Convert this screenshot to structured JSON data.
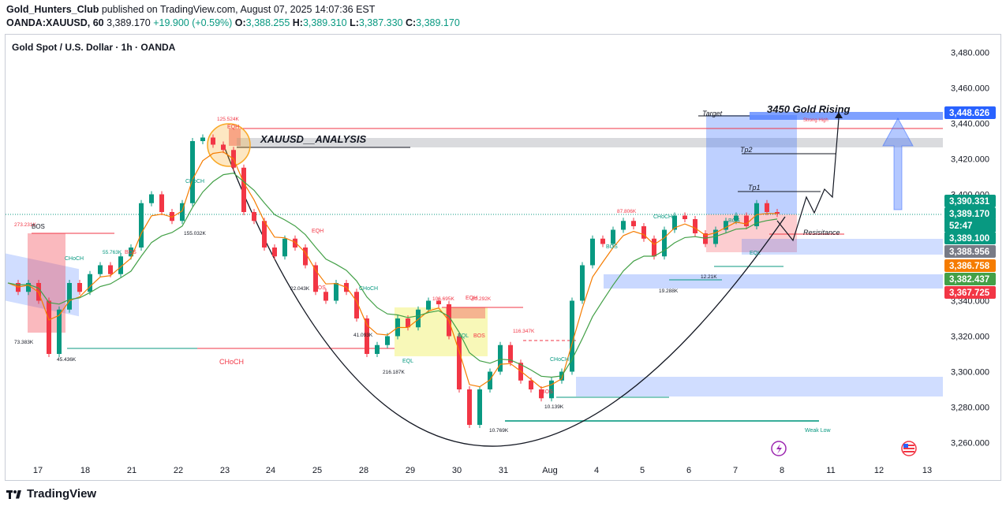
{
  "header": {
    "user": "Gold_Hunters_Club",
    "published_text": "published on TradingView.com, August 07, 2025 14:07:36 EST",
    "symbol": "OANDA:XAUUSD, 60",
    "last": "3,389.170",
    "change": "+19.900 (+0.59%)",
    "o_label": "O:",
    "o": "3,388.255",
    "h_label": "H:",
    "h": "3,389.310",
    "l_label": "L:",
    "l": "3,387.330",
    "c_label": "C:",
    "c": "3,389.170"
  },
  "chart_title": "Gold Spot / U.S. Dollar · 1h · OANDA",
  "footer": {
    "brand": "TradingView"
  },
  "colors": {
    "up": "#089981",
    "down": "#f23645",
    "ema_fast": "#f57c00",
    "ema_slow": "#43a047",
    "zone_blue": "#2962ff",
    "zone_red": "#f23645",
    "zone_yellow": "#e6e600"
  },
  "chart_data": {
    "type": "line",
    "y_axis": {
      "min": 3250,
      "max": 3490,
      "ticks": [
        "3,260.000",
        "3,280.000",
        "3,300.000",
        "3,320.000",
        "3,340.000",
        "3,360.000",
        "3,380.000",
        "3,400.000",
        "3,420.000",
        "3,440.000",
        "3,460.000",
        "3,480.000"
      ]
    },
    "x_ticks": [
      "17",
      "18",
      "21",
      "22",
      "23",
      "24",
      "25",
      "28",
      "29",
      "30",
      "31",
      "Aug",
      "4",
      "5",
      "6",
      "7",
      "8",
      "11",
      "12",
      "13"
    ],
    "price_path": [
      [
        0,
        3350
      ],
      [
        1,
        3345
      ],
      [
        2,
        3350
      ],
      [
        3,
        3340
      ],
      [
        4,
        3310
      ],
      [
        5,
        3335
      ],
      [
        6,
        3350
      ],
      [
        7,
        3345
      ],
      [
        8,
        3355
      ],
      [
        9,
        3360
      ],
      [
        10,
        3355
      ],
      [
        11,
        3365
      ],
      [
        12,
        3370
      ],
      [
        13,
        3395
      ],
      [
        14,
        3400
      ],
      [
        15,
        3390
      ],
      [
        16,
        3385
      ],
      [
        17,
        3395
      ],
      [
        18,
        3430
      ],
      [
        19,
        3432
      ],
      [
        20,
        3428
      ],
      [
        21,
        3425
      ],
      [
        22,
        3415
      ],
      [
        23,
        3390
      ],
      [
        24,
        3385
      ],
      [
        25,
        3370
      ],
      [
        26,
        3365
      ],
      [
        27,
        3375
      ],
      [
        28,
        3370
      ],
      [
        29,
        3360
      ],
      [
        30,
        3345
      ],
      [
        31,
        3340
      ],
      [
        32,
        3350
      ],
      [
        33,
        3345
      ],
      [
        34,
        3330
      ],
      [
        35,
        3310
      ],
      [
        36,
        3315
      ],
      [
        37,
        3320
      ],
      [
        38,
        3330
      ],
      [
        39,
        3325
      ],
      [
        40,
        3335
      ],
      [
        41,
        3340
      ],
      [
        42,
        3338
      ],
      [
        43,
        3320
      ],
      [
        44,
        3290
      ],
      [
        45,
        3270
      ],
      [
        46,
        3290
      ],
      [
        47,
        3300
      ],
      [
        48,
        3315
      ],
      [
        49,
        3305
      ],
      [
        50,
        3295
      ],
      [
        51,
        3290
      ],
      [
        52,
        3285
      ],
      [
        53,
        3295
      ],
      [
        54,
        3300
      ],
      [
        55,
        3340
      ],
      [
        56,
        3360
      ],
      [
        57,
        3375
      ],
      [
        58,
        3372
      ],
      [
        59,
        3380
      ],
      [
        60,
        3385
      ],
      [
        61,
        3382
      ],
      [
        62,
        3375
      ],
      [
        63,
        3365
      ],
      [
        64,
        3380
      ],
      [
        65,
        3388
      ],
      [
        66,
        3386
      ],
      [
        67,
        3378
      ],
      [
        68,
        3372
      ],
      [
        69,
        3380
      ],
      [
        70,
        3385
      ],
      [
        71,
        3388
      ],
      [
        72,
        3382
      ],
      [
        73,
        3395
      ],
      [
        74,
        3390
      ],
      [
        75,
        3389
      ]
    ],
    "price_labels": [
      {
        "value": "3,448.626",
        "color": "#2962ff"
      },
      {
        "value": "3,390.331",
        "color": "#089981"
      },
      {
        "value": "3,389.170",
        "color": "#089981"
      },
      {
        "value": "52:47",
        "color": "#089981"
      },
      {
        "value": "3,389.100",
        "color": "#089981"
      },
      {
        "value": "3,388.956",
        "color": "#787b86"
      },
      {
        "value": "3,386.758",
        "color": "#f57c00"
      },
      {
        "value": "3,382.437",
        "color": "#43a047"
      },
      {
        "value": "3,367.725",
        "color": "#f23645"
      }
    ],
    "annotations": {
      "analysis": "XAUUSD__ANALYSIS",
      "gold_rising": "3450 Gold Rising",
      "target": "Target",
      "tp2": "Tp2",
      "tp1": "Tp1",
      "resistance": "Resisitance",
      "weak_low": "Weak Low",
      "bos": "BOS",
      "choch": "CHoCH",
      "eqh": "EQH",
      "eql": "EQL",
      "strong_high": "Strong High",
      "small_labels": [
        "273.231K",
        "73.383K",
        "45.436K",
        "55.763K",
        "155.032K",
        "125.524K",
        "22.043K",
        "41.093K",
        "216.187K",
        "106.695K",
        "60.292K",
        "116.347K",
        "10.769K",
        "10.139K",
        "87.806K",
        "19.288K",
        "12.21K"
      ]
    }
  }
}
